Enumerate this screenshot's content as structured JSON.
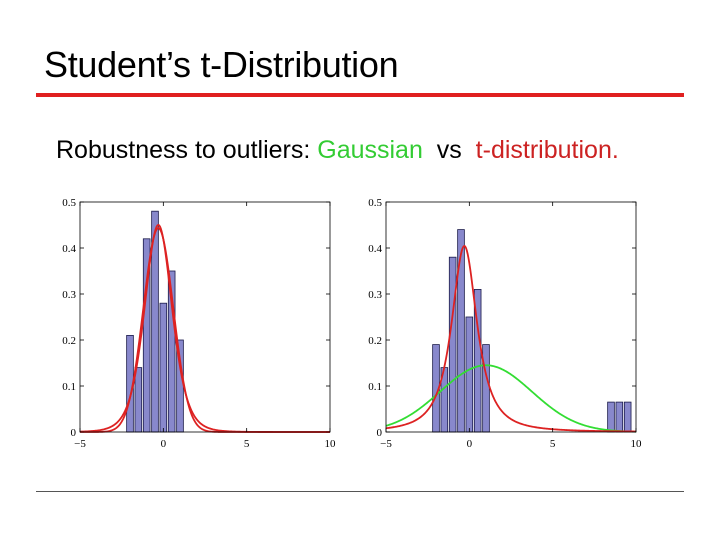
{
  "slide": {
    "title": "Student’s t-Distribution",
    "subtitle_prefix": "Robustness to outliers: ",
    "subtitle_gaussian": "Gaussian",
    "subtitle_middle": "  vs  ",
    "subtitle_t": "t-distribution.",
    "colors": {
      "title_rule": "#e02020",
      "bottom_rule": "#555555",
      "gaussian_text": "#33cc33",
      "t_text": "#cc2222"
    }
  },
  "chart_data": [
    {
      "type": "bar",
      "title": "",
      "xlabel": "",
      "ylabel": "",
      "xlim": [
        -5,
        10
      ],
      "ylim": [
        0,
        0.5
      ],
      "x_ticks": [
        "−5",
        "0",
        "5",
        "10"
      ],
      "y_ticks": [
        "0",
        "0.1",
        "0.2",
        "0.3",
        "0.4",
        "0.5"
      ],
      "grid": false,
      "bar_color": "#8888cc",
      "histogram": {
        "bin_width": 0.5,
        "bin_centers": [
          -2.0,
          -1.5,
          -1.0,
          -0.5,
          0.0,
          0.5,
          1.0
        ],
        "values": [
          0.21,
          0.14,
          0.42,
          0.48,
          0.28,
          0.35,
          0.2
        ]
      },
      "series": [
        {
          "kind": "line",
          "color": "#dd2222",
          "curve": "gaussian",
          "mean": -0.3,
          "sd": 0.9
        },
        {
          "kind": "line",
          "color": "#dd2222",
          "curve": "t",
          "location": -0.3,
          "scale": 0.85,
          "dof": 6
        }
      ]
    },
    {
      "type": "bar",
      "title": "",
      "xlabel": "",
      "ylabel": "",
      "xlim": [
        -5,
        10
      ],
      "ylim": [
        0,
        0.5
      ],
      "x_ticks": [
        "−5",
        "0",
        "5",
        "10"
      ],
      "y_ticks": [
        "0",
        "0.1",
        "0.2",
        "0.3",
        "0.4",
        "0.5"
      ],
      "grid": false,
      "bar_color": "#8888cc",
      "histogram": {
        "bin_width": 0.5,
        "bin_centers": [
          -2.0,
          -1.5,
          -1.0,
          -0.5,
          0.0,
          0.5,
          1.0,
          8.5,
          9.0,
          9.5
        ],
        "values": [
          0.19,
          0.14,
          0.38,
          0.44,
          0.25,
          0.31,
          0.19,
          0.065,
          0.065,
          0.065
        ]
      },
      "series": [
        {
          "kind": "line",
          "color": "#33dd33",
          "curve": "gaussian",
          "mean": 1.0,
          "sd": 2.75
        },
        {
          "kind": "line",
          "color": "#dd2222",
          "curve": "t",
          "location": -0.3,
          "scale": 0.85,
          "dof": 1.6
        }
      ]
    }
  ]
}
